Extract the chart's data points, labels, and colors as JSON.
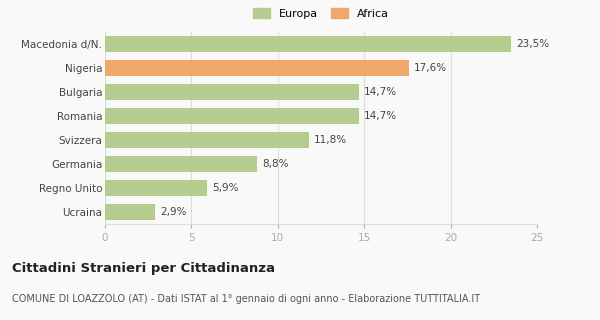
{
  "categories": [
    "Macedonia d/N.",
    "Nigeria",
    "Bulgaria",
    "Romania",
    "Svizzera",
    "Germania",
    "Regno Unito",
    "Ucraina"
  ],
  "values": [
    23.5,
    17.6,
    14.7,
    14.7,
    11.8,
    8.8,
    5.9,
    2.9
  ],
  "labels": [
    "23,5%",
    "17,6%",
    "14,7%",
    "14,7%",
    "11,8%",
    "8,8%",
    "5,9%",
    "2,9%"
  ],
  "colors": [
    "#b5cc8e",
    "#f0a868",
    "#b5cc8e",
    "#b5cc8e",
    "#b5cc8e",
    "#b5cc8e",
    "#b5cc8e",
    "#b5cc8e"
  ],
  "legend": [
    {
      "label": "Europa",
      "color": "#b5cc8e"
    },
    {
      "label": "Africa",
      "color": "#f0a868"
    }
  ],
  "xlim": [
    0,
    25
  ],
  "xticks": [
    0,
    5,
    10,
    15,
    20,
    25
  ],
  "title": "Cittadini Stranieri per Cittadinanza",
  "subtitle": "COMUNE DI LOAZZOLO (AT) - Dati ISTAT al 1° gennaio di ogni anno - Elaborazione TUTTITALIA.IT",
  "background_color": "#f9f9f9",
  "grid_color": "#dddddd",
  "bar_height": 0.65,
  "title_fontsize": 9.5,
  "subtitle_fontsize": 7,
  "label_fontsize": 7.5,
  "tick_fontsize": 7.5,
  "legend_fontsize": 8
}
